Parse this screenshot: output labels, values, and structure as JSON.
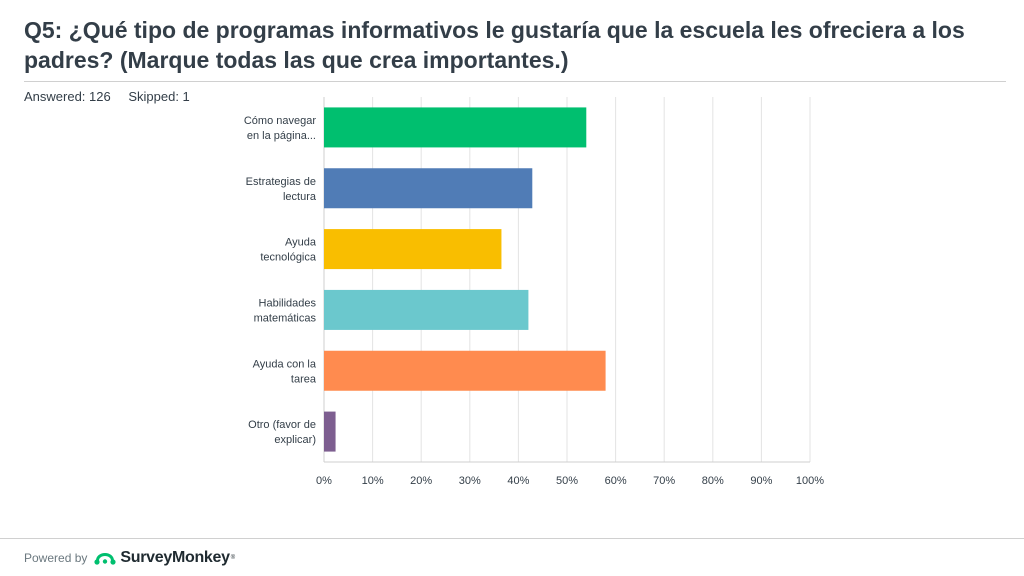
{
  "header": {
    "title": "Q5: ¿Qué tipo de programas informativos le gustaría que la escuela les ofreciera a los padres? (Marque todas las que crea importantes.)",
    "answered": "Answered: 126",
    "skipped": "Skipped: 1"
  },
  "footer": {
    "powered_by": "Powered by",
    "brand": "SurveyMonkey",
    "logo_icon": "surveymonkey-logo-icon"
  },
  "chart_data": {
    "type": "bar",
    "orientation": "horizontal",
    "title": "",
    "xlabel": "",
    "ylabel": "",
    "xlim": [
      0,
      100
    ],
    "grid": true,
    "categories": [
      [
        "Cómo navegar",
        "en la página..."
      ],
      [
        "Estrategias de",
        "lectura"
      ],
      [
        "Ayuda",
        "tecnológica"
      ],
      [
        "Habilidades",
        "matemáticas"
      ],
      [
        "Ayuda con la",
        "tarea"
      ],
      [
        "Otro (favor de",
        "explicar)"
      ]
    ],
    "values": [
      53.97,
      42.86,
      36.51,
      42.06,
      57.94,
      2.38
    ],
    "colors": [
      "#00bf6f",
      "#507cb6",
      "#f9be00",
      "#6bc8cd",
      "#ff8b4f",
      "#7d5e90"
    ],
    "ticks": [
      "0%",
      "10%",
      "20%",
      "30%",
      "40%",
      "50%",
      "60%",
      "70%",
      "80%",
      "90%",
      "100%"
    ]
  }
}
